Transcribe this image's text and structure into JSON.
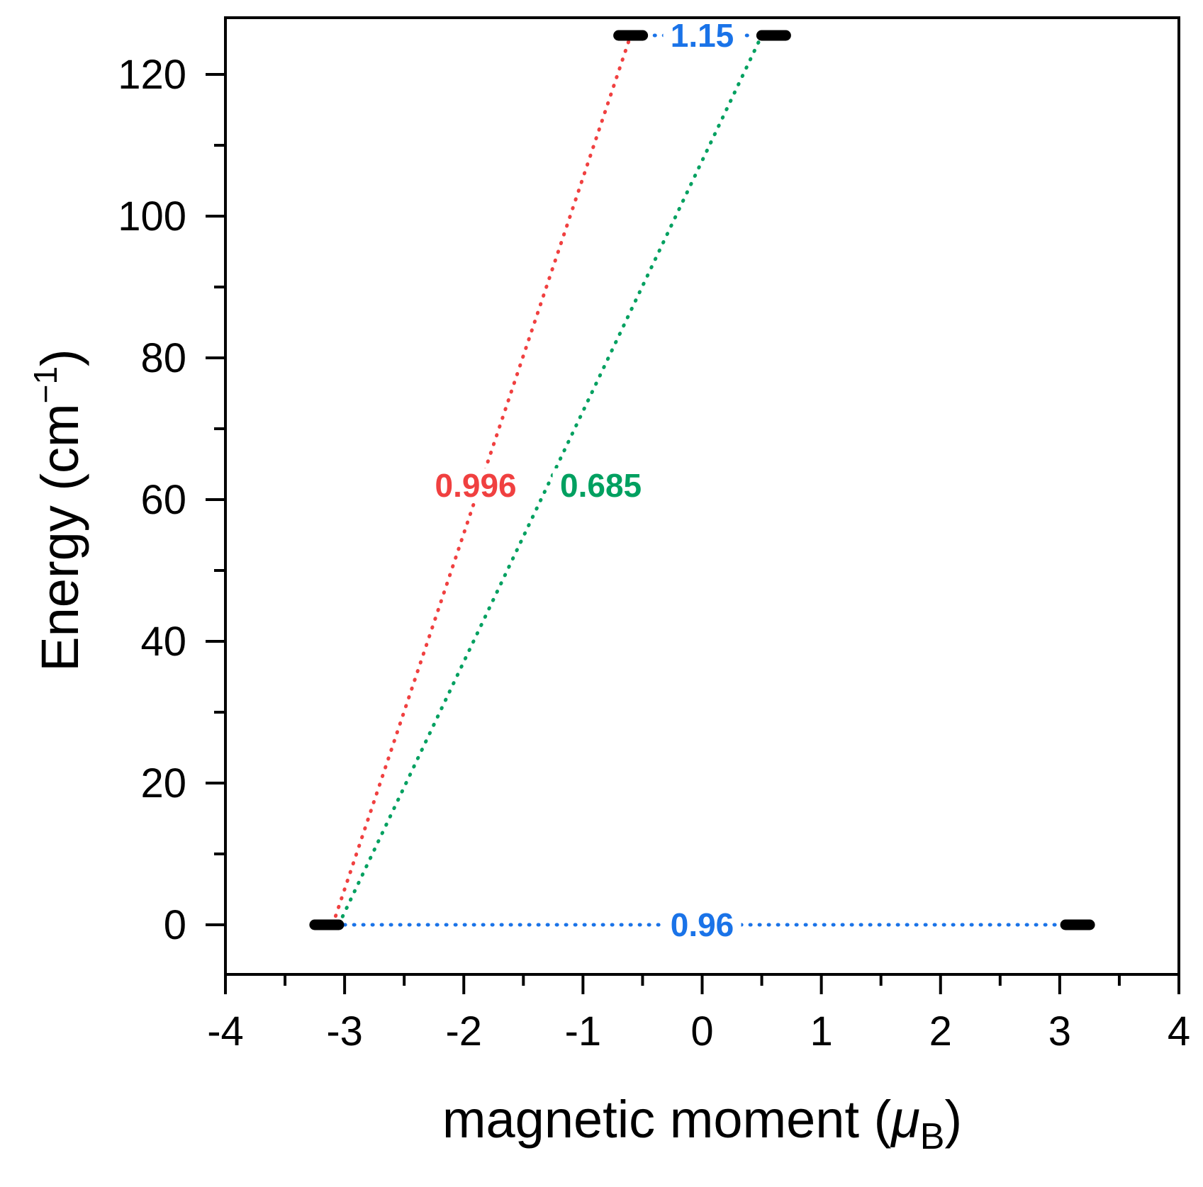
{
  "chart_data": {
    "type": "scatter",
    "xlabel": {
      "main": "magnetic moment (",
      "symbol": "μ",
      "sub": "B",
      "close": ")"
    },
    "ylabel": {
      "main": "Energy (cm",
      "sup": "−1",
      "close": ")"
    },
    "xlim": [
      -4,
      4
    ],
    "ylim": [
      -7,
      128
    ],
    "x_ticks": [
      -4,
      -3,
      -2,
      -1,
      0,
      1,
      2,
      3,
      4
    ],
    "y_ticks": [
      0,
      20,
      40,
      60,
      80,
      100,
      120
    ],
    "x_tick_labels": [
      "-4",
      "-3",
      "-2",
      "-1",
      "0",
      "1",
      "2",
      "3",
      "4"
    ],
    "y_tick_labels": [
      "0",
      "20",
      "40",
      "60",
      "80",
      "100",
      "120"
    ],
    "grid": false,
    "levels": [
      {
        "x": -3.15,
        "y": 0
      },
      {
        "x": 3.15,
        "y": 0
      },
      {
        "x": -0.6,
        "y": 125.5
      },
      {
        "x": 0.6,
        "y": 125.5
      }
    ],
    "transitions": [
      {
        "from": [
          -3.1,
          0
        ],
        "to": [
          -0.6,
          125.5
        ],
        "label": "0.996",
        "label_at": [
          -1.9,
          62
        ],
        "color": "#f04040"
      },
      {
        "from": [
          -3.05,
          0
        ],
        "to": [
          0.5,
          125.5
        ],
        "label": "0.685",
        "label_at": [
          -0.85,
          62
        ],
        "color": "#00a060"
      },
      {
        "from": [
          -3.0,
          0
        ],
        "to": [
          3.05,
          0
        ],
        "label": "0.96",
        "label_at": [
          0.0,
          0
        ],
        "color": "#1a73e8"
      },
      {
        "from": [
          -0.4,
          125.5
        ],
        "to": [
          0.45,
          125.5
        ],
        "label": "1.15",
        "label_at": [
          0.0,
          125.5
        ],
        "color": "#1a73e8"
      }
    ]
  }
}
